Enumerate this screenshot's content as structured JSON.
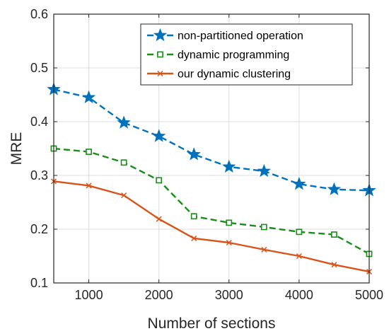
{
  "chart_data": {
    "type": "line",
    "title": "",
    "xlabel": "Number of sections",
    "ylabel": "MRE",
    "x": [
      500,
      1000,
      1500,
      2000,
      2500,
      3000,
      3500,
      4000,
      4500,
      5000
    ],
    "xlim": [
      500,
      5000
    ],
    "ylim": [
      0.1,
      0.6
    ],
    "x_ticks": [
      "1000",
      "2000",
      "3000",
      "4000",
      "5000"
    ],
    "y_ticks": [
      "0.1",
      "0.2",
      "0.3",
      "0.4",
      "0.5",
      "0.6"
    ],
    "grid": true,
    "legend_position": "top-right",
    "series": [
      {
        "name": "non-partitioned operation",
        "color": "#0072BD",
        "line_style": "dashed",
        "marker": "star",
        "values": [
          0.46,
          0.445,
          0.398,
          0.373,
          0.339,
          0.316,
          0.308,
          0.284,
          0.274,
          0.272
        ]
      },
      {
        "name": "dynamic programming",
        "color": "#1a8c1a",
        "line_style": "dashed",
        "marker": "square",
        "values": [
          0.35,
          0.344,
          0.324,
          0.291,
          0.224,
          0.212,
          0.204,
          0.195,
          0.19,
          0.154
        ]
      },
      {
        "name": "our dynamic clustering",
        "color": "#D95319",
        "line_style": "solid",
        "marker": "x",
        "values": [
          0.289,
          0.281,
          0.263,
          0.219,
          0.183,
          0.175,
          0.162,
          0.15,
          0.134,
          0.121
        ]
      }
    ]
  }
}
